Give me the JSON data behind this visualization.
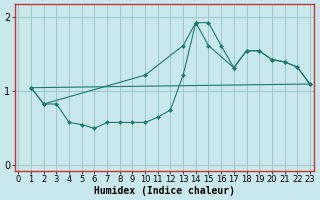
{
  "xlabel": "Humidex (Indice chaleur)",
  "xlim": [
    -0.3,
    23.3
  ],
  "ylim": [
    -0.08,
    2.18
  ],
  "xticks": [
    0,
    1,
    2,
    3,
    4,
    5,
    6,
    7,
    8,
    9,
    10,
    11,
    12,
    13,
    14,
    15,
    16,
    17,
    18,
    19,
    20,
    21,
    22,
    23
  ],
  "yticks": [
    0,
    1,
    2
  ],
  "bg_color": "#c8e8ec",
  "grid_color": "#90bcc0",
  "line_color": "#1a7a6e",
  "line1_x": [
    1,
    2,
    3,
    4,
    5,
    6,
    7,
    8,
    9,
    10,
    11,
    12,
    13,
    14,
    15,
    16,
    17,
    18,
    19,
    20,
    21,
    22,
    23
  ],
  "line1_y": [
    1.05,
    0.83,
    0.83,
    0.58,
    0.55,
    0.5,
    0.58,
    0.58,
    0.58,
    0.58,
    0.65,
    0.75,
    1.22,
    1.93,
    1.93,
    1.62,
    1.32,
    1.55,
    1.55,
    1.43,
    1.4,
    1.33,
    1.1
  ],
  "line2_x": [
    1,
    2,
    10,
    13,
    14,
    15,
    17,
    18,
    19,
    20,
    21,
    22,
    23
  ],
  "line2_y": [
    1.05,
    0.83,
    1.22,
    1.62,
    1.93,
    1.62,
    1.32,
    1.55,
    1.55,
    1.43,
    1.4,
    1.33,
    1.1
  ],
  "line3_x": [
    1,
    23
  ],
  "line3_y": [
    1.05,
    1.1
  ],
  "border_color": "#cc3333",
  "font_size_xlabel": 7,
  "tick_fontsize": 6,
  "line_width": 0.8,
  "marker_size": 2.2
}
